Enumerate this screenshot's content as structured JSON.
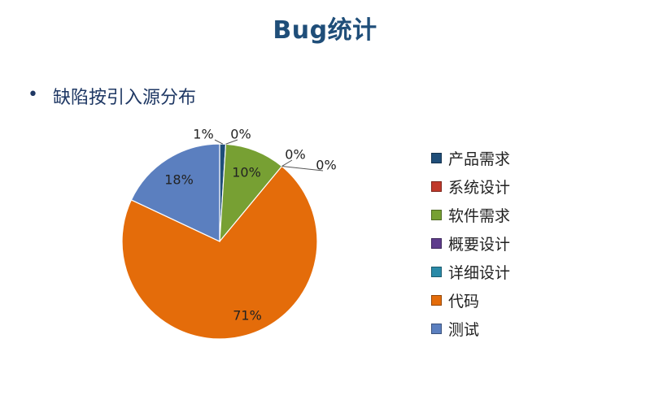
{
  "slide": {
    "title": "Bug统计",
    "bullet_marker": "•",
    "bullet_text": "缺陷按引入源分布"
  },
  "chart_data": {
    "type": "pie",
    "categories": [
      "产品需求",
      "系统设计",
      "软件需求",
      "概要设计",
      "详细设计",
      "代码",
      "测试"
    ],
    "values": [
      1,
      0,
      10,
      0,
      0,
      71,
      18
    ],
    "data_labels": [
      "1%",
      "0%",
      "10%",
      "0%",
      "0%",
      "71%",
      "18%"
    ],
    "colors": [
      "#1f4e79",
      "#c0392b",
      "#77a033",
      "#5e3c8c",
      "#2a8aa8",
      "#e46c0a",
      "#5b7fbf"
    ],
    "legend_position": "right",
    "start_angle": "12 o'clock",
    "direction": "clockwise"
  }
}
